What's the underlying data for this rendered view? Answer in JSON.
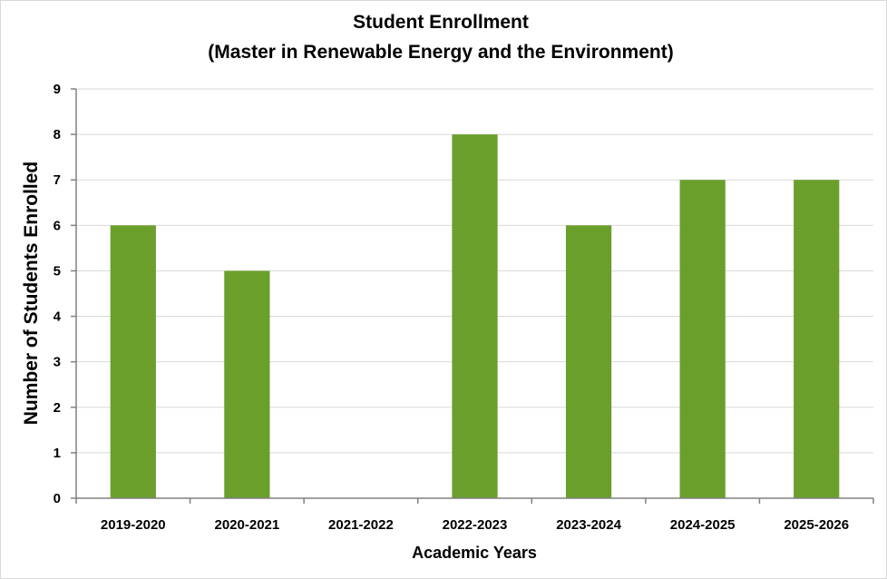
{
  "chart_data": {
    "type": "bar",
    "title": "Student Enrollment",
    "subtitle": "(Master in Renewable Energy and the Environment)",
    "xlabel": "Academic Years",
    "ylabel": "Number of Students Enrolled",
    "categories": [
      "2019-2020",
      "2020-2021",
      "2021-2022",
      "2022-2023",
      "2023-2024",
      "2024-2025",
      "2025-2026"
    ],
    "values": [
      6,
      5,
      0,
      8,
      6,
      7,
      7
    ],
    "ylim": [
      0,
      9
    ],
    "yticks": [
      "0",
      "1",
      "2",
      "3",
      "4",
      "5",
      "6",
      "7",
      "8",
      "9"
    ],
    "grid": true,
    "legend": "none",
    "colors": {
      "bar": "#6a9f2c",
      "grid": "#d9d9d9",
      "axis": "#808080"
    }
  }
}
